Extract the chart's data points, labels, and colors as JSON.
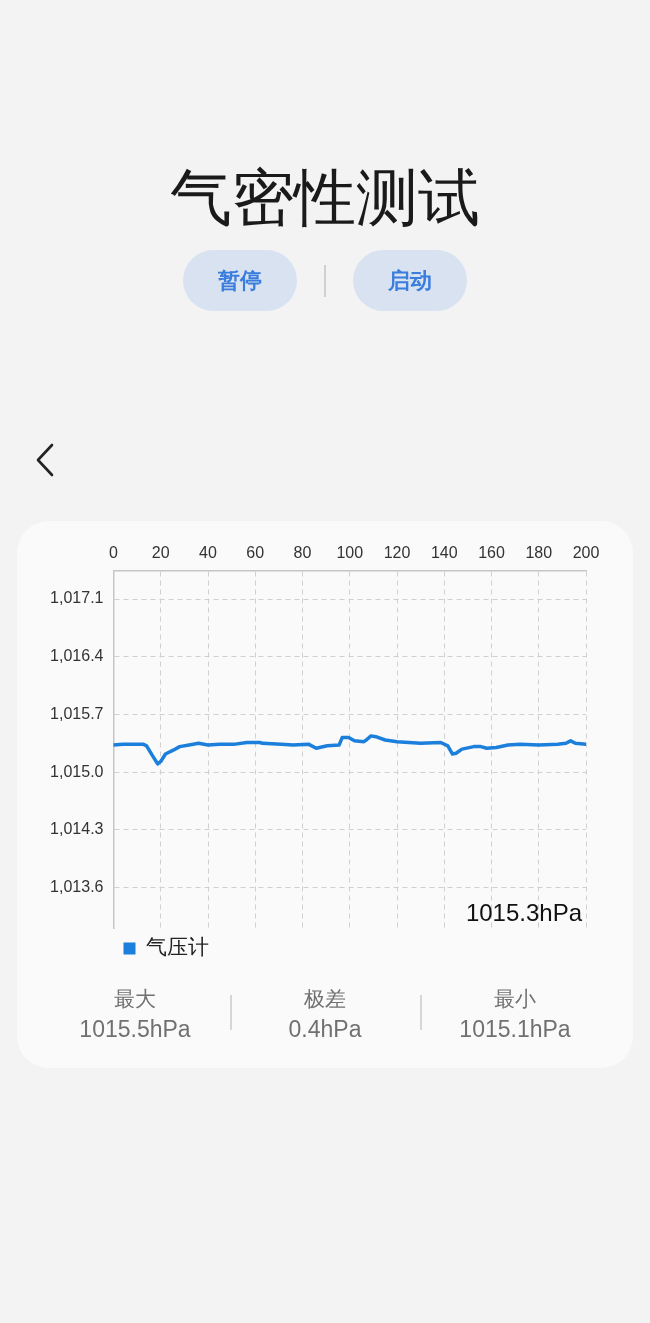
{
  "chart_data": {
    "type": "line",
    "title": "气密性测试",
    "x": [
      0,
      4,
      9,
      12.5,
      14,
      16.5,
      18.7,
      20,
      22,
      25.5,
      28,
      32,
      36,
      40,
      45,
      51.5,
      56.5,
      62,
      63,
      71,
      76,
      82.5,
      85.8,
      90.5,
      95.5,
      96.8,
      99.5,
      102,
      106,
      107,
      109,
      111,
      115,
      120,
      130,
      138.5,
      141.5,
      143.5,
      145,
      147.5,
      152.5,
      155.5,
      158,
      162,
      167,
      172,
      180,
      188,
      191.5,
      193.5,
      195.5,
      200
    ],
    "series": [
      {
        "name": "气压计",
        "color": "#1b7fdb",
        "values": [
          1015.33,
          1015.34,
          1015.34,
          1015.34,
          1015.32,
          1015.2,
          1015.1,
          1015.13,
          1015.22,
          1015.27,
          1015.31,
          1015.33,
          1015.35,
          1015.33,
          1015.34,
          1015.34,
          1015.36,
          1015.36,
          1015.35,
          1015.34,
          1015.33,
          1015.34,
          1015.29,
          1015.32,
          1015.33,
          1015.42,
          1015.42,
          1015.38,
          1015.37,
          1015.39,
          1015.44,
          1015.43,
          1015.39,
          1015.37,
          1015.35,
          1015.36,
          1015.32,
          1015.22,
          1015.23,
          1015.28,
          1015.31,
          1015.31,
          1015.29,
          1015.3,
          1015.33,
          1015.34,
          1015.33,
          1015.34,
          1015.35,
          1015.38,
          1015.35,
          1015.34
        ]
      }
    ],
    "xlim": [
      0,
      200
    ],
    "xticks": [
      0,
      20,
      40,
      60,
      80,
      100,
      120,
      140,
      160,
      180,
      200
    ],
    "ylim": [
      1013.11,
      1017.44
    ],
    "yticks": [
      {
        "value": 1013.6,
        "label": "1,013.6"
      },
      {
        "value": 1014.3,
        "label": "1,014.3"
      },
      {
        "value": 1015.0,
        "label": "1,015.0"
      },
      {
        "value": 1015.7,
        "label": "1,015.7"
      },
      {
        "value": 1016.4,
        "label": "1,016.4"
      },
      {
        "value": 1017.1,
        "label": "1,017.1"
      }
    ],
    "grid": true,
    "legend": "bottom left",
    "marker": "none",
    "line_style": "solid",
    "annotations": [
      "暂停",
      "启动",
      "1015.3hPa",
      "最大",
      "1015.5hPa",
      "极差",
      "0.4hPa",
      "最小",
      "1015.1hPa"
    ]
  }
}
